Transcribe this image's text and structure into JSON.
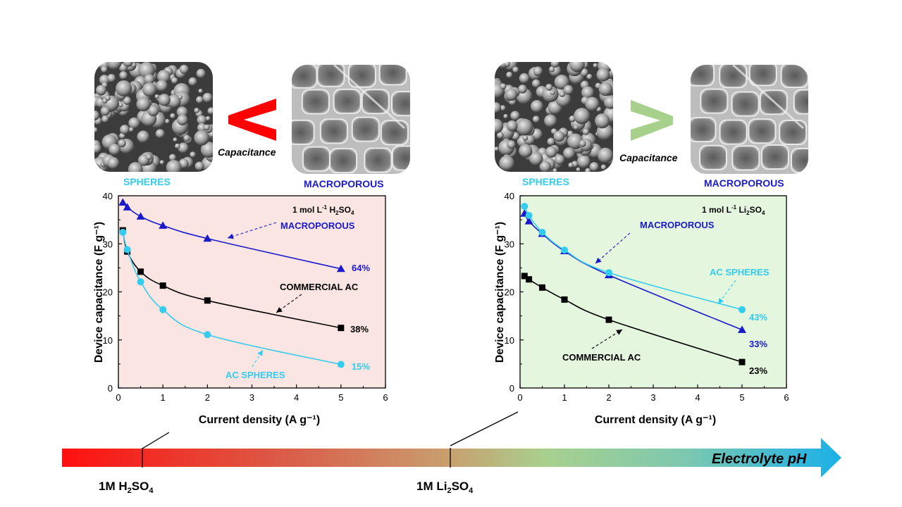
{
  "colors": {
    "spheres": "#33ccee",
    "macroporous": "#1a1acc",
    "commercial": "#000000",
    "less_than": "#ff0000",
    "greater_than": "#a8d08d",
    "left_bg": "#fbe5e3",
    "right_bg": "#e5f6df"
  },
  "panels": [
    {
      "sem_left_label": "SPHERES",
      "sem_right_label": "MACROPOROUS",
      "comparator": "<",
      "comparator_label": "Capacitance",
      "electrolyte": {
        "prefix": "1 mol L",
        "sup": "-1",
        "mid1": " H",
        "sub1": "2",
        "mid2": "SO",
        "sub2": "4"
      }
    },
    {
      "sem_left_label": "SPHERES",
      "sem_right_label": "MACROPOROUS",
      "comparator": ">",
      "comparator_label": "Capacitance",
      "electrolyte": {
        "prefix": "1 mol L",
        "sup": "-1",
        "mid1": " Li",
        "sub1": "2",
        "mid2": "SO",
        "sub2": "4"
      }
    }
  ],
  "chart_data": [
    {
      "type": "line",
      "ylabel": "Device capacitance (F g⁻¹)",
      "xlabel": "Current density (A g⁻¹)",
      "xlim": [
        0,
        6
      ],
      "ylim": [
        0,
        40
      ],
      "xticks": [
        "0",
        "1",
        "2",
        "3",
        "4",
        "5",
        "6"
      ],
      "yticks": [
        "0",
        "10",
        "20",
        "30",
        "40"
      ],
      "series": [
        {
          "name": "MACROPOROUS",
          "marker": "triangle",
          "x": [
            0.1,
            0.2,
            0.5,
            1,
            2,
            5
          ],
          "y": [
            38.6,
            37.6,
            35.7,
            33.8,
            31.1,
            24.8
          ],
          "retention": "64%"
        },
        {
          "name": "COMMERCIAL AC",
          "marker": "square",
          "x": [
            0.1,
            0.2,
            0.5,
            1,
            2,
            5
          ],
          "y": [
            32.8,
            28.4,
            24.2,
            21.3,
            18.2,
            12.5
          ],
          "retention": "38%"
        },
        {
          "name": "AC SPHERES",
          "marker": "circle",
          "x": [
            0.1,
            0.2,
            0.5,
            1,
            2,
            5
          ],
          "y": [
            32.4,
            28.8,
            22.1,
            16.3,
            11.1,
            4.9
          ],
          "retention": "15%"
        }
      ]
    },
    {
      "type": "line",
      "ylabel": "Device capacitance (F g⁻¹)",
      "xlabel": "Current density (A g⁻¹)",
      "xlim": [
        0,
        6
      ],
      "ylim": [
        0,
        40
      ],
      "xticks": [
        "0",
        "1",
        "2",
        "3",
        "4",
        "5",
        "6"
      ],
      "yticks": [
        "0",
        "10",
        "20",
        "30",
        "40"
      ],
      "series": [
        {
          "name": "MACROPOROUS",
          "marker": "triangle",
          "x": [
            0.1,
            0.2,
            0.5,
            1,
            2,
            5
          ],
          "y": [
            36.3,
            34.7,
            32.1,
            28.5,
            23.5,
            12.1
          ],
          "retention": "33%"
        },
        {
          "name": "AC SPHERES",
          "marker": "circle",
          "x": [
            0.1,
            0.2,
            0.5,
            1,
            2,
            5
          ],
          "y": [
            37.8,
            35.9,
            32.4,
            28.7,
            24.0,
            16.3
          ],
          "retention": "43%"
        },
        {
          "name": "COMMERCIAL AC",
          "marker": "square",
          "x": [
            0.1,
            0.2,
            0.5,
            1,
            2,
            5
          ],
          "y": [
            23.3,
            22.6,
            20.9,
            18.4,
            14.2,
            5.4
          ],
          "retention": "23%"
        }
      ]
    }
  ],
  "ph_bar": {
    "title": "Electrolyte pH",
    "left": {
      "a": "1M H",
      "b": "2",
      "c": "SO",
      "d": "4"
    },
    "right": {
      "a": "1M Li",
      "b": "2",
      "c": "SO",
      "d": "4"
    }
  }
}
